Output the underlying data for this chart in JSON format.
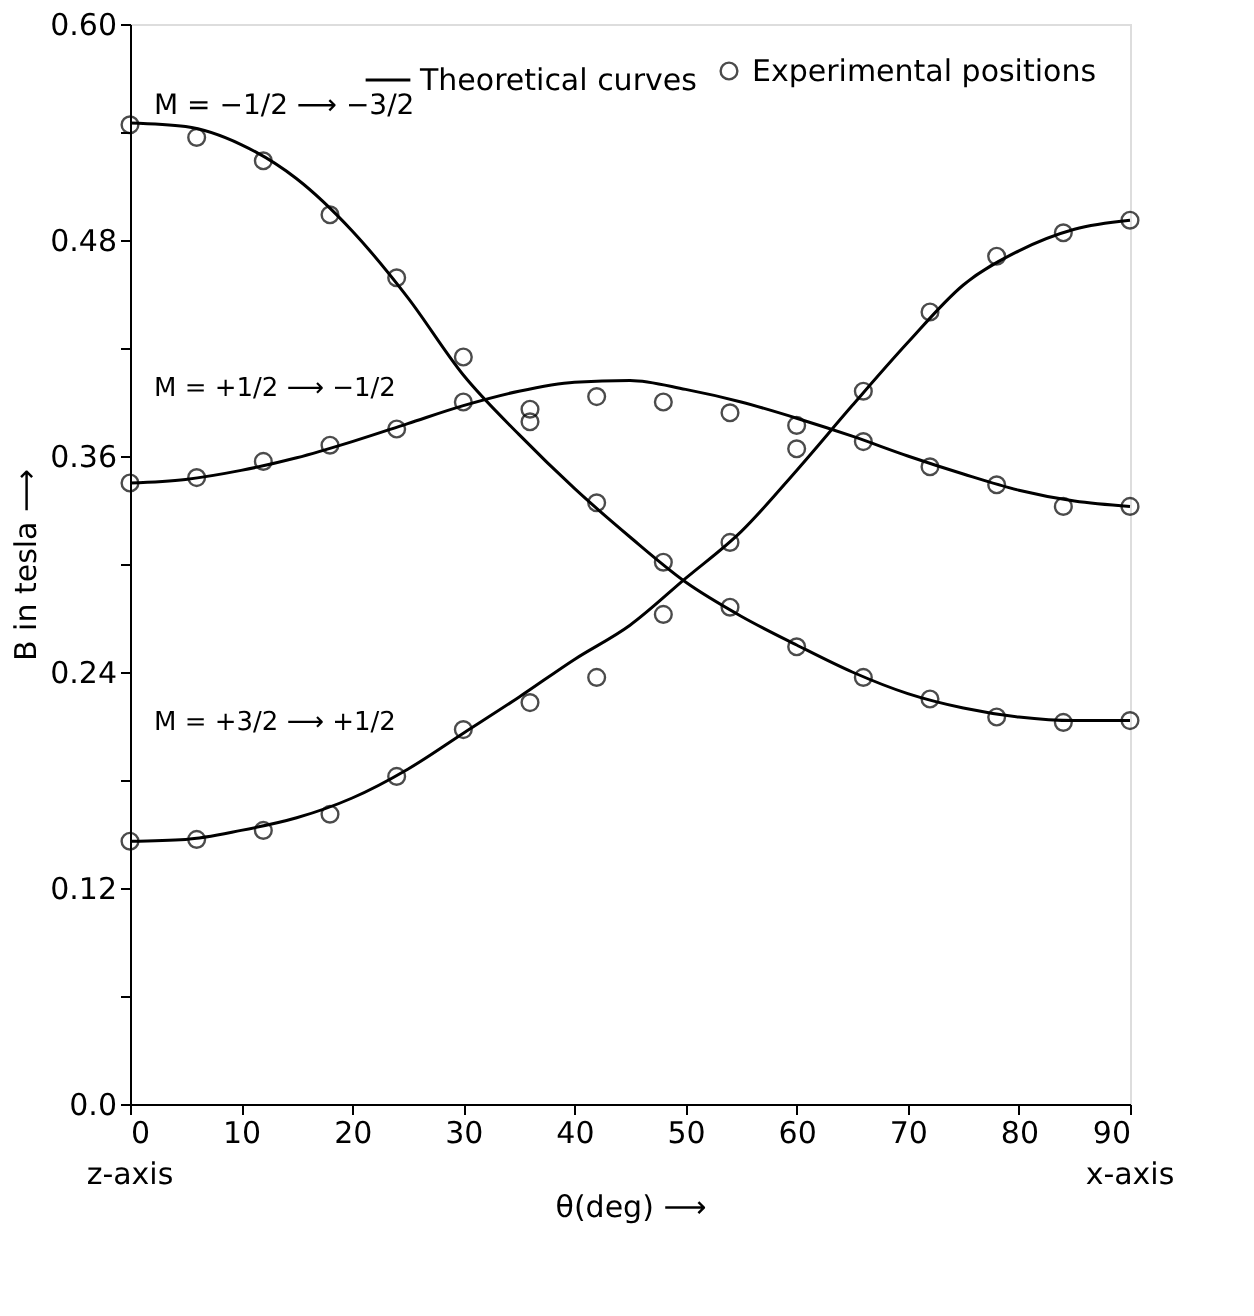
{
  "chart_data": {
    "type": "line",
    "xlabel": "θ(deg) ⟶",
    "ylabel": "B in tesla ⟶",
    "x": [
      0,
      5,
      10,
      15,
      20,
      25,
      30,
      35,
      40,
      45,
      50,
      55,
      60,
      65,
      70,
      75,
      80,
      85,
      90
    ],
    "series": [
      {
        "name": "Theoretical curves",
        "color": "#000000",
        "values": [
          0.545,
          0.543,
          0.533,
          0.514,
          0.485,
          0.448,
          0.405,
          0.372,
          0.342,
          0.315,
          0.29,
          0.271,
          0.255,
          0.24,
          0.228,
          0.22,
          0.215,
          0.213,
          0.213
        ]
      },
      {
        "color": "#000000",
        "values": [
          0.345,
          0.347,
          0.352,
          0.359,
          0.368,
          0.378,
          0.388,
          0.396,
          0.401,
          0.402,
          0.397,
          0.39,
          0.381,
          0.371,
          0.36,
          0.35,
          0.341,
          0.335,
          0.332
        ]
      },
      {
        "color": "#000000",
        "values": [
          0.146,
          0.147,
          0.152,
          0.159,
          0.17,
          0.186,
          0.206,
          0.226,
          0.247,
          0.266,
          0.292,
          0.318,
          0.352,
          0.388,
          0.423,
          0.455,
          0.474,
          0.486,
          0.491
        ]
      },
      {
        "name": "Experimental positions",
        "color": "#000000",
        "type": "scatter",
        "marker": "circle",
        "x": [
          0,
          6,
          12,
          18,
          24,
          30,
          36,
          42,
          48,
          54,
          60,
          66,
          72,
          78,
          84,
          90,
          0,
          6,
          12,
          18,
          24,
          30,
          36,
          42,
          48,
          54,
          60,
          66,
          72,
          78,
          84,
          90,
          0,
          6,
          12,
          18,
          24,
          30,
          36,
          42,
          48,
          54,
          60,
          66,
          72,
          78,
          84,
          90
        ],
        "values": [
          0.544,
          0.537,
          0.524,
          0.494,
          0.459,
          0.415,
          0.379,
          0.334,
          0.301,
          0.276,
          0.254,
          0.237,
          0.225,
          0.215,
          0.212,
          0.213,
          0.345,
          0.348,
          0.357,
          0.366,
          0.375,
          0.39,
          0.386,
          0.393,
          0.39,
          0.384,
          0.377,
          0.368,
          0.354,
          0.344,
          0.332,
          0.332,
          0.146,
          0.147,
          0.152,
          0.161,
          0.182,
          0.208,
          0.223,
          0.237,
          0.272,
          0.312,
          0.364,
          0.396,
          0.44,
          0.471,
          0.484,
          0.491
        ]
      }
    ],
    "xlim": [
      0,
      90
    ],
    "xticks": [
      0,
      10,
      20,
      30,
      40,
      50,
      60,
      70,
      80,
      90
    ],
    "ylim": [
      0,
      0.6
    ],
    "yticks": [
      {
        "value": 0,
        "label": "0.0"
      },
      {
        "value": 0.06,
        "label": null
      },
      0.12,
      {
        "value": 0.18,
        "label": null
      },
      0.24,
      {
        "value": 0.3,
        "label": null
      },
      0.36,
      {
        "value": 0.42,
        "label": null
      },
      0.48,
      {
        "value": 0.54,
        "label": null
      },
      {
        "value": 0.6,
        "label": "0.60"
      }
    ],
    "legend": "top right",
    "annotations": [
      "M = −1/2 ⟶ −3/2",
      "M = +1/2 ⟶ −1/2",
      "M = +3/2 ⟶ +1/2",
      "z-axis",
      "x-axis"
    ]
  }
}
